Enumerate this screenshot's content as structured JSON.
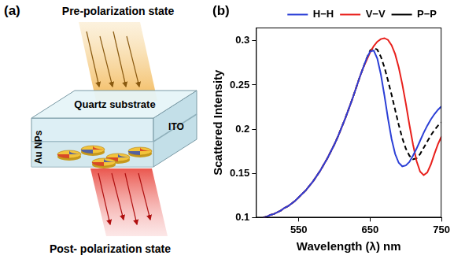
{
  "diagram": {
    "label": "(a)",
    "top_text": "Pre-polarization state",
    "bottom_text": "Post- polarization state",
    "layers": {
      "substrate": "Quartz substrate",
      "film": "ITO",
      "particles": "Au NPs"
    }
  },
  "chart_data": {
    "label": "(b)",
    "type": "line",
    "x_label": "Wavelength (λ) nm",
    "y_label": "Scattered Intensity",
    "x": [
      500,
      505,
      510,
      515,
      520,
      525,
      530,
      535,
      540,
      545,
      550,
      555,
      560,
      565,
      570,
      575,
      580,
      585,
      590,
      595,
      600,
      605,
      610,
      615,
      620,
      625,
      630,
      635,
      640,
      645,
      650,
      655,
      660,
      665,
      670,
      675,
      680,
      685,
      690,
      695,
      700,
      705,
      710,
      715,
      720,
      725,
      730,
      735,
      740,
      745,
      750
    ],
    "xlim": [
      490,
      750
    ],
    "xticks": [
      550,
      650,
      750
    ],
    "ylim": [
      0.1,
      0.315
    ],
    "yticks": [
      0.1,
      0.15,
      0.2,
      0.25,
      0.3
    ],
    "grid": false,
    "legend": "top",
    "series": [
      {
        "name": "H−H",
        "color": "#2b3fd6",
        "line_style": "solid",
        "values": [
          0.1,
          0.101,
          0.103,
          0.104,
          0.106,
          0.108,
          0.111,
          0.113,
          0.116,
          0.119,
          0.123,
          0.127,
          0.131,
          0.136,
          0.141,
          0.147,
          0.153,
          0.16,
          0.167,
          0.175,
          0.183,
          0.192,
          0.202,
          0.212,
          0.223,
          0.234,
          0.246,
          0.258,
          0.269,
          0.28,
          0.288,
          0.289,
          0.28,
          0.262,
          0.238,
          0.212,
          0.189,
          0.172,
          0.162,
          0.158,
          0.159,
          0.163,
          0.17,
          0.178,
          0.187,
          0.196,
          0.204,
          0.211,
          0.217,
          0.222,
          0.226
        ]
      },
      {
        "name": "V−V",
        "color": "#e8201c",
        "line_style": "solid",
        "values": [
          0.1,
          0.101,
          0.103,
          0.104,
          0.106,
          0.108,
          0.111,
          0.113,
          0.116,
          0.119,
          0.123,
          0.127,
          0.131,
          0.136,
          0.141,
          0.147,
          0.153,
          0.16,
          0.167,
          0.175,
          0.183,
          0.192,
          0.202,
          0.212,
          0.223,
          0.234,
          0.246,
          0.258,
          0.269,
          0.278,
          0.287,
          0.294,
          0.299,
          0.302,
          0.303,
          0.301,
          0.295,
          0.285,
          0.27,
          0.251,
          0.229,
          0.205,
          0.183,
          0.164,
          0.152,
          0.148,
          0.151,
          0.16,
          0.172,
          0.183,
          0.192
        ]
      },
      {
        "name": "P−P",
        "color": "#000000",
        "line_style": "dashed",
        "values": [
          0.1,
          0.101,
          0.103,
          0.104,
          0.106,
          0.108,
          0.111,
          0.113,
          0.116,
          0.119,
          0.123,
          0.127,
          0.131,
          0.136,
          0.141,
          0.147,
          0.153,
          0.16,
          0.167,
          0.175,
          0.183,
          0.192,
          0.202,
          0.212,
          0.223,
          0.234,
          0.246,
          0.258,
          0.269,
          0.28,
          0.289,
          0.292,
          0.29,
          0.282,
          0.27,
          0.255,
          0.239,
          0.222,
          0.205,
          0.19,
          0.178,
          0.17,
          0.166,
          0.167,
          0.172,
          0.179,
          0.186,
          0.193,
          0.199,
          0.204,
          0.208
        ]
      }
    ]
  }
}
